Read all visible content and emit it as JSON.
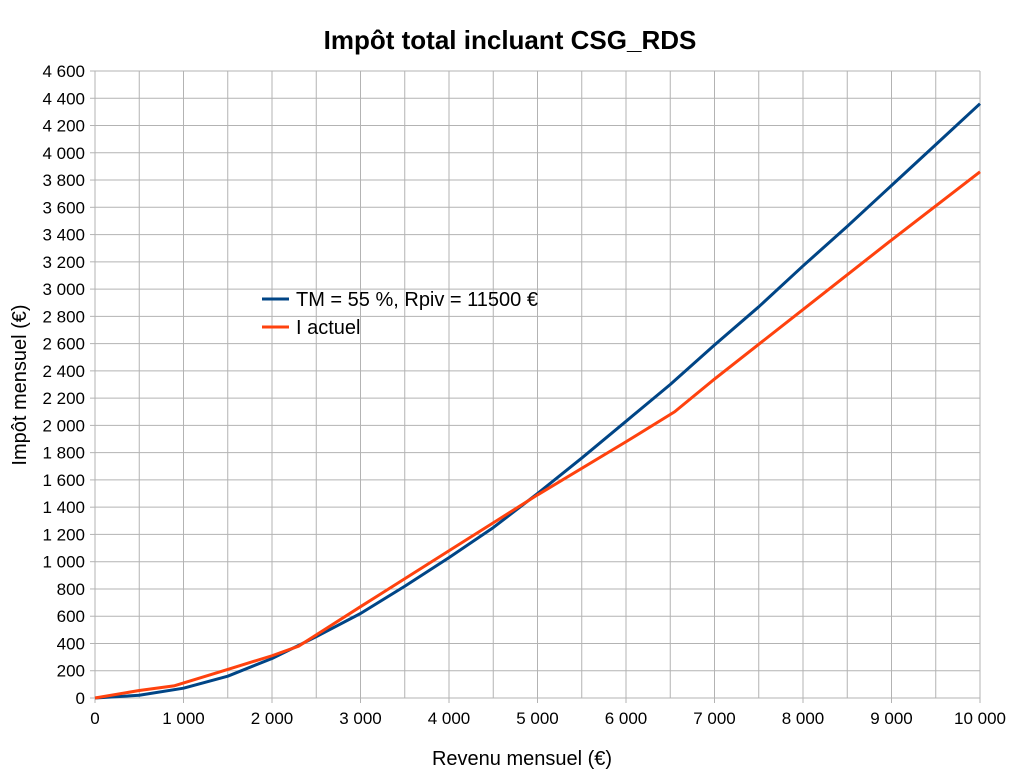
{
  "chart_data": {
    "type": "line",
    "title": "Impôt total incluant CSG_RDS",
    "xlabel": "Revenu mensuel (€)",
    "ylabel": "Impôt mensuel (€)",
    "xlim": [
      0,
      10000
    ],
    "ylim": [
      0,
      4600
    ],
    "x_ticks": [
      0,
      1000,
      2000,
      3000,
      4000,
      5000,
      6000,
      7000,
      8000,
      9000,
      10000
    ],
    "x_tick_labels": [
      "0",
      "1 000",
      "2 000",
      "3 000",
      "4 000",
      "5 000",
      "6 000",
      "7 000",
      "8 000",
      "9 000",
      "10 000"
    ],
    "y_ticks": [
      0,
      200,
      400,
      600,
      800,
      1000,
      1200,
      1400,
      1600,
      1800,
      2000,
      2200,
      2400,
      2600,
      2800,
      3000,
      3200,
      3400,
      3600,
      3800,
      4000,
      4200,
      4400,
      4600
    ],
    "y_tick_labels": [
      "0",
      "200",
      "400",
      "600",
      "800",
      "1 000",
      "1 200",
      "1 400",
      "1 600",
      "1 800",
      "2 000",
      "2 200",
      "2 400",
      "2 600",
      "2 800",
      "3 000",
      "3 200",
      "3 400",
      "3 600",
      "3 800",
      "4 000",
      "4 200",
      "4 400",
      "4 600"
    ],
    "grid": true,
    "legend_position": "center-left",
    "series": [
      {
        "name": "TM = 55 %, Rpiv = 11500 €",
        "color": "#004586",
        "x": [
          0,
          500,
          1000,
          1500,
          2000,
          2500,
          3000,
          3500,
          4000,
          4500,
          5000,
          5500,
          6000,
          6500,
          7000,
          7500,
          8000,
          8500,
          9000,
          9500,
          10000
        ],
        "y": [
          0,
          20,
          72,
          160,
          290,
          450,
          620,
          820,
          1030,
          1250,
          1500,
          1760,
          2030,
          2300,
          2590,
          2870,
          3170,
          3460,
          3760,
          4060,
          4360
        ]
      },
      {
        "name": "I actuel",
        "color": "#ff420e",
        "x": [
          0,
          500,
          900,
          1500,
          2000,
          2300,
          3000,
          4000,
          5000,
          6000,
          6550,
          7000,
          8000,
          9000,
          10000
        ],
        "y": [
          0,
          55,
          90,
          210,
          310,
          380,
          670,
          1080,
          1490,
          1880,
          2100,
          2340,
          2850,
          3360,
          3860
        ]
      }
    ]
  }
}
